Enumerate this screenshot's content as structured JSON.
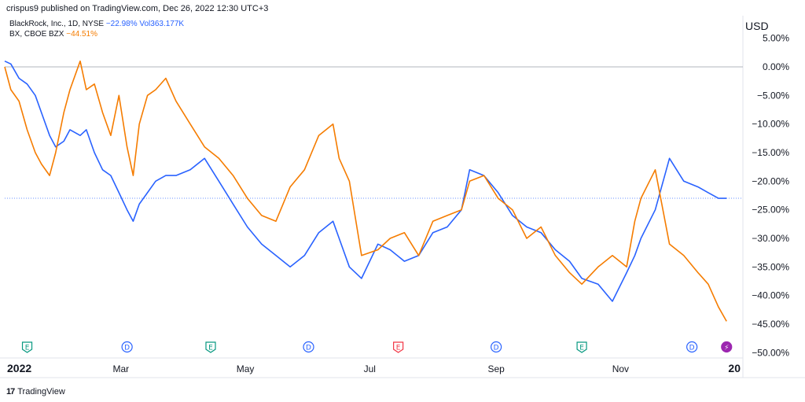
{
  "header": {
    "publish_line": "crispus9 published on TradingView.com, Dec 26, 2022 12:30 UTC+3",
    "legend": [
      {
        "name": "BlackRock, Inc., 1D, NYSE",
        "change": "−22.98%",
        "extra": "Vol363.177K",
        "color": "#2962ff"
      },
      {
        "name": "BX, CBOE BZX",
        "change": "−44.51%",
        "extra": "",
        "color": "#f57c00"
      }
    ],
    "currency": "USD"
  },
  "footer": {
    "brand": "TradingView",
    "logo_glyph": "17"
  },
  "chart_data": {
    "type": "line",
    "x_ticks": [
      "2022",
      "Mar",
      "May",
      "Jul",
      "Sep",
      "Nov",
      "20"
    ],
    "y_ticks": [
      "5.00%",
      "0.00%",
      "−5.00%",
      "−10.00%",
      "−15.00%",
      "−20.00%",
      "−25.00%",
      "−30.00%",
      "−35.00%",
      "−40.00%",
      "−45.00%",
      "−50.00%"
    ],
    "y_tick_values": [
      5,
      0,
      -5,
      -10,
      -15,
      -20,
      -25,
      -30,
      -35,
      -40,
      -45,
      -50
    ],
    "ylim": [
      -50.5,
      5.5
    ],
    "x_range": [
      "2022-01-03",
      "2022-12-31"
    ],
    "reference_lines": [
      0,
      -22.98
    ],
    "series": [
      {
        "name": "BlackRock, Inc.",
        "color": "#2962ff",
        "x": [
          "2022-01-03",
          "2022-01-06",
          "2022-01-10",
          "2022-01-14",
          "2022-01-18",
          "2022-01-21",
          "2022-01-25",
          "2022-01-28",
          "2022-02-01",
          "2022-02-04",
          "2022-02-09",
          "2022-02-12",
          "2022-02-16",
          "2022-02-20",
          "2022-02-24",
          "2022-02-28",
          "2022-03-04",
          "2022-03-07",
          "2022-03-10",
          "2022-03-14",
          "2022-03-18",
          "2022-03-23",
          "2022-03-28",
          "2022-04-04",
          "2022-04-11",
          "2022-04-18",
          "2022-04-25",
          "2022-05-02",
          "2022-05-09",
          "2022-05-16",
          "2022-05-23",
          "2022-05-30",
          "2022-06-06",
          "2022-06-13",
          "2022-06-16",
          "2022-06-21",
          "2022-06-27",
          "2022-07-05",
          "2022-07-11",
          "2022-07-18",
          "2022-07-25",
          "2022-08-01",
          "2022-08-08",
          "2022-08-15",
          "2022-08-19",
          "2022-08-26",
          "2022-09-02",
          "2022-09-09",
          "2022-09-16",
          "2022-09-23",
          "2022-09-30",
          "2022-10-07",
          "2022-10-13",
          "2022-10-21",
          "2022-10-28",
          "2022-11-04",
          "2022-11-08",
          "2022-11-11",
          "2022-11-18",
          "2022-11-25",
          "2022-12-02",
          "2022-12-09",
          "2022-12-14",
          "2022-12-19",
          "2022-12-23"
        ],
        "values": [
          1,
          0.5,
          -2,
          -3,
          -5,
          -8,
          -12,
          -14,
          -13,
          -11,
          -12,
          -11,
          -15,
          -18,
          -19,
          -22,
          -25,
          -27,
          -24,
          -22,
          -20,
          -19,
          -19,
          -18,
          -16,
          -20,
          -24,
          -28,
          -31,
          -33,
          -35,
          -33,
          -29,
          -27,
          -30,
          -35,
          -37,
          -31,
          -32,
          -34,
          -33,
          -29,
          -28,
          -25,
          -18,
          -19,
          -22,
          -26,
          -28,
          -29,
          -32,
          -34,
          -37,
          -38,
          -41,
          -36,
          -33,
          -30,
          -25,
          -16,
          -20,
          -21,
          -22,
          -23,
          -23
        ]
      },
      {
        "name": "BX",
        "color": "#f57c00",
        "x": [
          "2022-01-03",
          "2022-01-06",
          "2022-01-10",
          "2022-01-14",
          "2022-01-18",
          "2022-01-21",
          "2022-01-25",
          "2022-01-28",
          "2022-02-01",
          "2022-02-04",
          "2022-02-09",
          "2022-02-12",
          "2022-02-16",
          "2022-02-20",
          "2022-02-24",
          "2022-02-28",
          "2022-03-04",
          "2022-03-07",
          "2022-03-10",
          "2022-03-14",
          "2022-03-18",
          "2022-03-23",
          "2022-03-28",
          "2022-04-04",
          "2022-04-11",
          "2022-04-18",
          "2022-04-25",
          "2022-05-02",
          "2022-05-09",
          "2022-05-16",
          "2022-05-23",
          "2022-05-30",
          "2022-06-06",
          "2022-06-13",
          "2022-06-16",
          "2022-06-21",
          "2022-06-27",
          "2022-07-05",
          "2022-07-11",
          "2022-07-18",
          "2022-07-25",
          "2022-08-01",
          "2022-08-08",
          "2022-08-15",
          "2022-08-19",
          "2022-08-26",
          "2022-09-02",
          "2022-09-09",
          "2022-09-16",
          "2022-09-23",
          "2022-09-30",
          "2022-10-07",
          "2022-10-13",
          "2022-10-21",
          "2022-10-28",
          "2022-11-04",
          "2022-11-08",
          "2022-11-11",
          "2022-11-18",
          "2022-11-25",
          "2022-12-02",
          "2022-12-09",
          "2022-12-14",
          "2022-12-19",
          "2022-12-23"
        ],
        "values": [
          0,
          -4,
          -6,
          -11,
          -15,
          -17,
          -19,
          -15,
          -8,
          -4,
          1,
          -4,
          -3,
          -8,
          -12,
          -5,
          -14,
          -19,
          -10,
          -5,
          -4,
          -2,
          -6,
          -10,
          -14,
          -16,
          -19,
          -23,
          -26,
          -27,
          -21,
          -18,
          -12,
          -10,
          -16,
          -20,
          -33,
          -32,
          -30,
          -29,
          -33,
          -27,
          -26,
          -25,
          -20,
          -19,
          -23,
          -25,
          -30,
          -28,
          -33,
          -36,
          -38,
          -35,
          -33,
          -35,
          -27,
          -23,
          -18,
          -31,
          -33,
          -36,
          -38,
          -42,
          -44.5
        ]
      }
    ],
    "event_markers": [
      {
        "date": "2022-01-14",
        "label": "E",
        "color": "#089981"
      },
      {
        "date": "2022-03-04",
        "label": "D",
        "color": "#2962ff"
      },
      {
        "date": "2022-04-14",
        "label": "E",
        "color": "#089981"
      },
      {
        "date": "2022-06-01",
        "label": "D",
        "color": "#2962ff"
      },
      {
        "date": "2022-07-15",
        "label": "E",
        "color": "#f23645"
      },
      {
        "date": "2022-09-01",
        "label": "D",
        "color": "#2962ff"
      },
      {
        "date": "2022-10-13",
        "label": "E",
        "color": "#089981"
      },
      {
        "date": "2022-12-06",
        "label": "D",
        "color": "#2962ff"
      },
      {
        "date": "2022-12-23",
        "label": "⚡",
        "color": "#9c27b0"
      }
    ]
  }
}
